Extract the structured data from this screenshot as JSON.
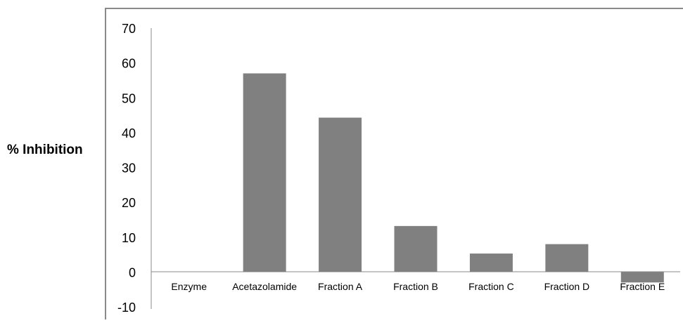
{
  "chart_data": {
    "type": "bar",
    "title": "",
    "xlabel": "",
    "ylabel": "% Inhibition",
    "categories": [
      "Enzyme",
      "Acetazolamide",
      "Fraction A",
      "Fraction B",
      "Fraction C",
      "Fraction D",
      "Fraction E"
    ],
    "values": [
      0,
      57,
      44.3,
      13.2,
      5.3,
      8,
      -3
    ],
    "ylim": [
      -10,
      70
    ],
    "yticks": [
      "70",
      "60",
      "50",
      "40",
      "30",
      "20",
      "10",
      "0",
      "-10"
    ],
    "grid": false,
    "legend": "none",
    "bar_color": "#808080"
  }
}
